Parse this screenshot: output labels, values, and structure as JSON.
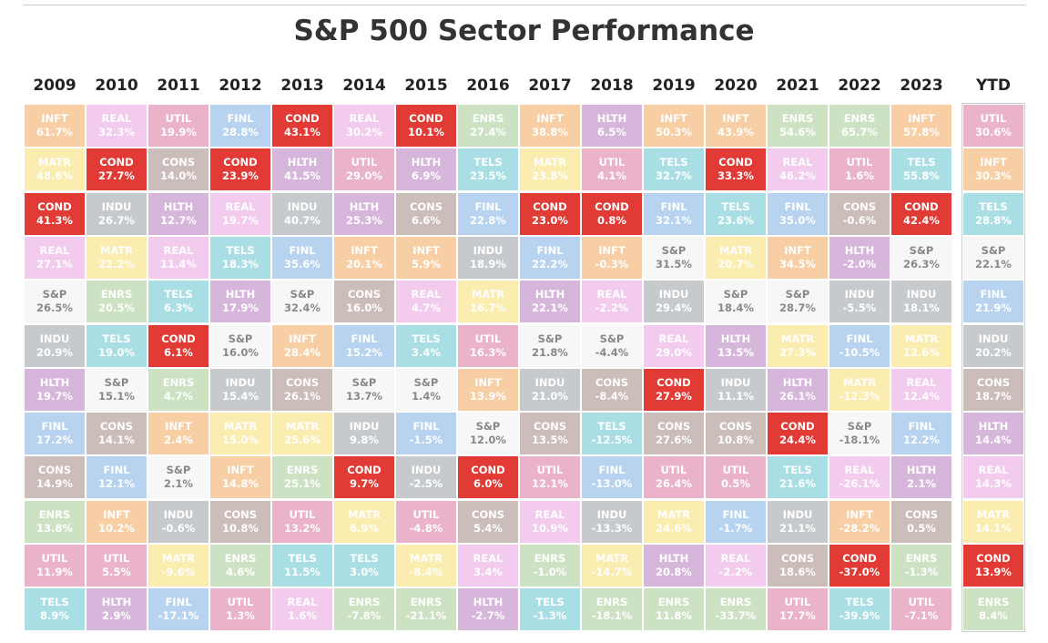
{
  "title": "S&P 500 Sector Performance",
  "chart_data": {
    "type": "table",
    "title": "S&P 500 Sector Performance",
    "unit": "%",
    "colors": {
      "INFT": "#f8cfa5",
      "REAL": "#f2cbee",
      "UTIL": "#eab3c9",
      "FINL": "#b7d3f0",
      "COND": "#e23b36",
      "ENRS": "#cde2c2",
      "HLTH": "#d7b6dc",
      "MATR": "#fbecaf",
      "CONS": "#cbbdba",
      "TELS": "#a9dfe4",
      "INDU": "#c7cacd",
      "S&P": "#f7f7f7"
    },
    "dark_text": {
      "S&P": "#888888"
    },
    "columns": [
      {
        "year": "2009",
        "cells": [
          [
            "INFT",
            "61.7%"
          ],
          [
            "MATR",
            "48.6%"
          ],
          [
            "COND",
            "41.3%"
          ],
          [
            "REAL",
            "27.1%"
          ],
          [
            "S&P",
            "26.5%"
          ],
          [
            "INDU",
            "20.9%"
          ],
          [
            "HLTH",
            "19.7%"
          ],
          [
            "FINL",
            "17.2%"
          ],
          [
            "CONS",
            "14.9%"
          ],
          [
            "ENRS",
            "13.8%"
          ],
          [
            "UTIL",
            "11.9%"
          ],
          [
            "TELS",
            "8.9%"
          ]
        ]
      },
      {
        "year": "2010",
        "cells": [
          [
            "REAL",
            "32.3%"
          ],
          [
            "COND",
            "27.7%"
          ],
          [
            "INDU",
            "26.7%"
          ],
          [
            "MATR",
            "22.2%"
          ],
          [
            "ENRS",
            "20.5%"
          ],
          [
            "TELS",
            "19.0%"
          ],
          [
            "S&P",
            "15.1%"
          ],
          [
            "CONS",
            "14.1%"
          ],
          [
            "FINL",
            "12.1%"
          ],
          [
            "INFT",
            "10.2%"
          ],
          [
            "UTIL",
            "5.5%"
          ],
          [
            "HLTH",
            "2.9%"
          ]
        ]
      },
      {
        "year": "2011",
        "cells": [
          [
            "UTIL",
            "19.9%"
          ],
          [
            "CONS",
            "14.0%"
          ],
          [
            "HLTH",
            "12.7%"
          ],
          [
            "REAL",
            "11.4%"
          ],
          [
            "TELS",
            "6.3%"
          ],
          [
            "COND",
            "6.1%"
          ],
          [
            "ENRS",
            "4.7%"
          ],
          [
            "INFT",
            "2.4%"
          ],
          [
            "S&P",
            "2.1%"
          ],
          [
            "INDU",
            "-0.6%"
          ],
          [
            "MATR",
            "-9.6%"
          ],
          [
            "FINL",
            "-17.1%"
          ]
        ]
      },
      {
        "year": "2012",
        "cells": [
          [
            "FINL",
            "28.8%"
          ],
          [
            "COND",
            "23.9%"
          ],
          [
            "REAL",
            "19.7%"
          ],
          [
            "TELS",
            "18.3%"
          ],
          [
            "HLTH",
            "17.9%"
          ],
          [
            "S&P",
            "16.0%"
          ],
          [
            "INDU",
            "15.4%"
          ],
          [
            "MATR",
            "15.0%"
          ],
          [
            "INFT",
            "14.8%"
          ],
          [
            "CONS",
            "10.8%"
          ],
          [
            "ENRS",
            "4.6%"
          ],
          [
            "UTIL",
            "1.3%"
          ]
        ]
      },
      {
        "year": "2013",
        "cells": [
          [
            "COND",
            "43.1%"
          ],
          [
            "HLTH",
            "41.5%"
          ],
          [
            "INDU",
            "40.7%"
          ],
          [
            "FINL",
            "35.6%"
          ],
          [
            "S&P",
            "32.4%"
          ],
          [
            "INFT",
            "28.4%"
          ],
          [
            "CONS",
            "26.1%"
          ],
          [
            "MATR",
            "25.6%"
          ],
          [
            "ENRS",
            "25.1%"
          ],
          [
            "UTIL",
            "13.2%"
          ],
          [
            "TELS",
            "11.5%"
          ],
          [
            "REAL",
            "1.6%"
          ]
        ]
      },
      {
        "year": "2014",
        "cells": [
          [
            "REAL",
            "30.2%"
          ],
          [
            "UTIL",
            "29.0%"
          ],
          [
            "HLTH",
            "25.3%"
          ],
          [
            "INFT",
            "20.1%"
          ],
          [
            "CONS",
            "16.0%"
          ],
          [
            "FINL",
            "15.2%"
          ],
          [
            "S&P",
            "13.7%"
          ],
          [
            "INDU",
            "9.8%"
          ],
          [
            "COND",
            "9.7%"
          ],
          [
            "MATR",
            "6.9%"
          ],
          [
            "TELS",
            "3.0%"
          ],
          [
            "ENRS",
            "-7.8%"
          ]
        ]
      },
      {
        "year": "2015",
        "cells": [
          [
            "COND",
            "10.1%"
          ],
          [
            "HLTH",
            "6.9%"
          ],
          [
            "CONS",
            "6.6%"
          ],
          [
            "INFT",
            "5.9%"
          ],
          [
            "REAL",
            "4.7%"
          ],
          [
            "TELS",
            "3.4%"
          ],
          [
            "S&P",
            "1.4%"
          ],
          [
            "FINL",
            "-1.5%"
          ],
          [
            "INDU",
            "-2.5%"
          ],
          [
            "UTIL",
            "-4.8%"
          ],
          [
            "MATR",
            "-8.4%"
          ],
          [
            "ENRS",
            "-21.1%"
          ]
        ]
      },
      {
        "year": "2016",
        "cells": [
          [
            "ENRS",
            "27.4%"
          ],
          [
            "TELS",
            "23.5%"
          ],
          [
            "FINL",
            "22.8%"
          ],
          [
            "INDU",
            "18.9%"
          ],
          [
            "MATR",
            "16.7%"
          ],
          [
            "UTIL",
            "16.3%"
          ],
          [
            "INFT",
            "13.9%"
          ],
          [
            "S&P",
            "12.0%"
          ],
          [
            "COND",
            "6.0%"
          ],
          [
            "CONS",
            "5.4%"
          ],
          [
            "REAL",
            "3.4%"
          ],
          [
            "HLTH",
            "-2.7%"
          ]
        ]
      },
      {
        "year": "2017",
        "cells": [
          [
            "INFT",
            "38.8%"
          ],
          [
            "MATR",
            "23.8%"
          ],
          [
            "COND",
            "23.0%"
          ],
          [
            "FINL",
            "22.2%"
          ],
          [
            "HLTH",
            "22.1%"
          ],
          [
            "S&P",
            "21.8%"
          ],
          [
            "INDU",
            "21.0%"
          ],
          [
            "CONS",
            "13.5%"
          ],
          [
            "UTIL",
            "12.1%"
          ],
          [
            "REAL",
            "10.9%"
          ],
          [
            "ENRS",
            "-1.0%"
          ],
          [
            "TELS",
            "-1.3%"
          ]
        ]
      },
      {
        "year": "2018",
        "cells": [
          [
            "HLTH",
            "6.5%"
          ],
          [
            "UTIL",
            "4.1%"
          ],
          [
            "COND",
            "0.8%"
          ],
          [
            "INFT",
            "-0.3%"
          ],
          [
            "REAL",
            "-2.2%"
          ],
          [
            "S&P",
            "-4.4%"
          ],
          [
            "CONS",
            "-8.4%"
          ],
          [
            "TELS",
            "-12.5%"
          ],
          [
            "FINL",
            "-13.0%"
          ],
          [
            "INDU",
            "-13.3%"
          ],
          [
            "MATR",
            "-14.7%"
          ],
          [
            "ENRS",
            "-18.1%"
          ]
        ]
      },
      {
        "year": "2019",
        "cells": [
          [
            "INFT",
            "50.3%"
          ],
          [
            "TELS",
            "32.7%"
          ],
          [
            "FINL",
            "32.1%"
          ],
          [
            "S&P",
            "31.5%"
          ],
          [
            "INDU",
            "29.4%"
          ],
          [
            "REAL",
            "29.0%"
          ],
          [
            "COND",
            "27.9%"
          ],
          [
            "CONS",
            "27.6%"
          ],
          [
            "UTIL",
            "26.4%"
          ],
          [
            "MATR",
            "24.6%"
          ],
          [
            "HLTH",
            "20.8%"
          ],
          [
            "ENRS",
            "11.8%"
          ]
        ]
      },
      {
        "year": "2020",
        "cells": [
          [
            "INFT",
            "43.9%"
          ],
          [
            "COND",
            "33.3%"
          ],
          [
            "TELS",
            "23.6%"
          ],
          [
            "MATR",
            "20.7%"
          ],
          [
            "S&P",
            "18.4%"
          ],
          [
            "HLTH",
            "13.5%"
          ],
          [
            "INDU",
            "11.1%"
          ],
          [
            "CONS",
            "10.8%"
          ],
          [
            "UTIL",
            "0.5%"
          ],
          [
            "FINL",
            "-1.7%"
          ],
          [
            "REAL",
            "-2.2%"
          ],
          [
            "ENRS",
            "-33.7%"
          ]
        ]
      },
      {
        "year": "2021",
        "cells": [
          [
            "ENRS",
            "54.6%"
          ],
          [
            "REAL",
            "46.2%"
          ],
          [
            "FINL",
            "35.0%"
          ],
          [
            "INFT",
            "34.5%"
          ],
          [
            "S&P",
            "28.7%"
          ],
          [
            "MATR",
            "27.3%"
          ],
          [
            "HLTH",
            "26.1%"
          ],
          [
            "COND",
            "24.4%"
          ],
          [
            "TELS",
            "21.6%"
          ],
          [
            "INDU",
            "21.1%"
          ],
          [
            "CONS",
            "18.6%"
          ],
          [
            "UTIL",
            "17.7%"
          ]
        ]
      },
      {
        "year": "2022",
        "cells": [
          [
            "ENRS",
            "65.7%"
          ],
          [
            "UTIL",
            "1.6%"
          ],
          [
            "CONS",
            "-0.6%"
          ],
          [
            "HLTH",
            "-2.0%"
          ],
          [
            "INDU",
            "-5.5%"
          ],
          [
            "FINL",
            "-10.5%"
          ],
          [
            "MATR",
            "-12.3%"
          ],
          [
            "S&P",
            "-18.1%"
          ],
          [
            "REAL",
            "-26.1%"
          ],
          [
            "INFT",
            "-28.2%"
          ],
          [
            "COND",
            "-37.0%"
          ],
          [
            "TELS",
            "-39.9%"
          ]
        ]
      },
      {
        "year": "2023",
        "cells": [
          [
            "INFT",
            "57.8%"
          ],
          [
            "TELS",
            "55.8%"
          ],
          [
            "COND",
            "42.4%"
          ],
          [
            "S&P",
            "26.3%"
          ],
          [
            "INDU",
            "18.1%"
          ],
          [
            "MATR",
            "12.6%"
          ],
          [
            "REAL",
            "12.4%"
          ],
          [
            "FINL",
            "12.2%"
          ],
          [
            "HLTH",
            "2.1%"
          ],
          [
            "CONS",
            "0.5%"
          ],
          [
            "ENRS",
            "-1.3%"
          ],
          [
            "UTIL",
            "-7.1%"
          ]
        ]
      },
      {
        "year": "YTD",
        "cells": [
          [
            "UTIL",
            "30.6%"
          ],
          [
            "INFT",
            "30.3%"
          ],
          [
            "TELS",
            "28.8%"
          ],
          [
            "S&P",
            "22.1%"
          ],
          [
            "FINL",
            "21.9%"
          ],
          [
            "INDU",
            "20.2%"
          ],
          [
            "CONS",
            "18.7%"
          ],
          [
            "HLTH",
            "14.4%"
          ],
          [
            "REAL",
            "14.3%"
          ],
          [
            "MATR",
            "14.1%"
          ],
          [
            "COND",
            "13.9%"
          ],
          [
            "ENRS",
            "8.4%"
          ]
        ]
      }
    ]
  }
}
